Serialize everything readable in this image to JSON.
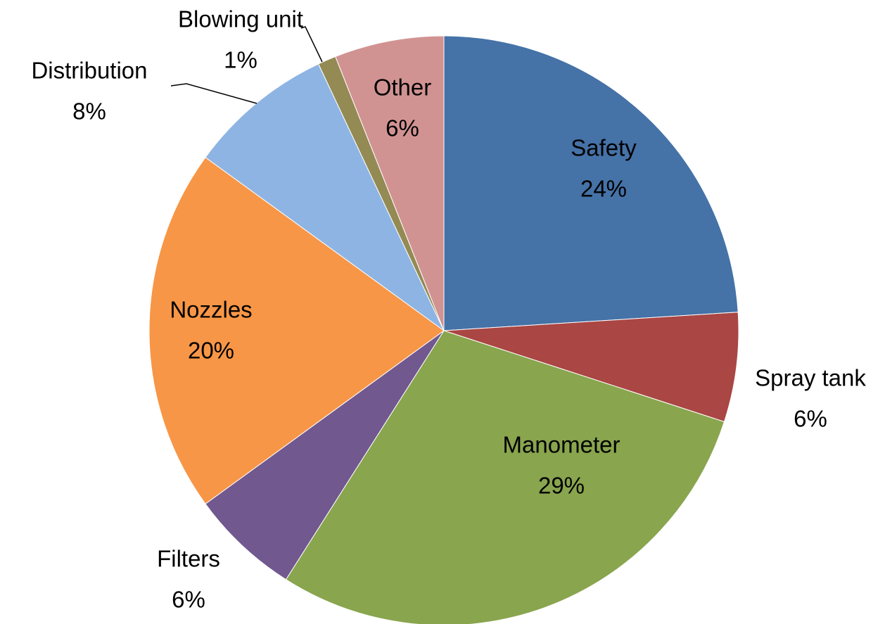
{
  "chart_data": {
    "type": "pie",
    "categories": [
      "Safety",
      "Spray tank",
      "Manometer",
      "Filters",
      "Nozzles",
      "Distribution",
      "Blowing unit",
      "Other"
    ],
    "values": [
      24,
      6,
      29,
      6,
      20,
      8,
      1,
      6
    ],
    "value_labels": [
      "24%",
      "6%",
      "29%",
      "6%",
      "20%",
      "8%",
      "1%",
      "6%"
    ],
    "colors": [
      "#4572a7",
      "#aa4643",
      "#89a54e",
      "#71588f",
      "#f79646",
      "#8eb4e3",
      "#948a54",
      "#d19392"
    ]
  }
}
